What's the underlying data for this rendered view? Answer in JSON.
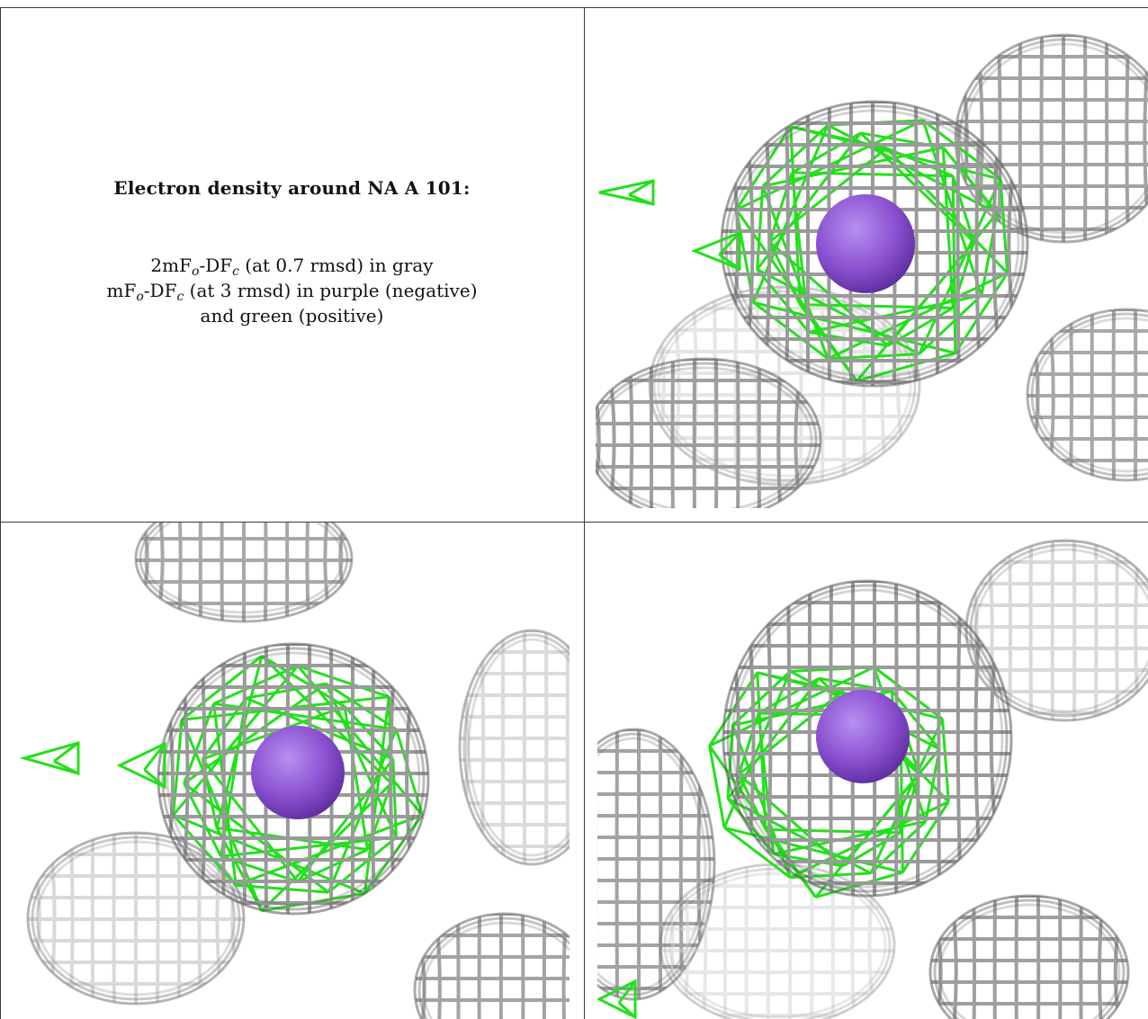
{
  "caption": {
    "title": "Electron density around NA A 101:",
    "line1": {
      "a": "2mF",
      "a_sub": "o",
      "b": "-DF",
      "b_sub": "c",
      "rest": " (at 0.7 rmsd) in gray"
    },
    "line2": {
      "a": "mF",
      "a_sub": "o",
      "b": "-DF",
      "b_sub": "c",
      "rest": " (at 3 rmsd) in purple (negative)"
    },
    "line3": "and green (positive)"
  },
  "colors": {
    "gray_map": "#9a9a9a",
    "gray_dark": "#555555",
    "gray_light": "#d0d0d0",
    "green_map": "#22e01a",
    "purple_sphere": "#8a4fd0",
    "border": "#3a3a3a"
  },
  "panels": [
    {
      "name": "top-right-view"
    },
    {
      "name": "bottom-left-view"
    },
    {
      "name": "bottom-right-view"
    }
  ]
}
